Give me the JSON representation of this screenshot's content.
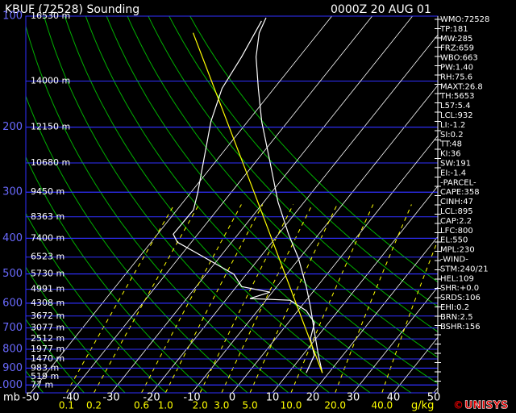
{
  "chart_data": {
    "type": "skewt",
    "title": "KBUF (72528) Sounding",
    "subtitle": "0000Z 20 AUG 01",
    "y_label": "mb",
    "mixing_ratio_unit": "g/kg",
    "log_y": true,
    "ylim": [
      1050,
      100
    ],
    "yticks": [
      100,
      200,
      300,
      400,
      500,
      600,
      700,
      800,
      900,
      1000
    ],
    "xlim": [
      -51.2,
      51
    ],
    "xticks": [
      -50,
      -40,
      -30,
      -20,
      -10,
      0,
      10,
      20,
      30,
      40,
      50
    ],
    "height_levels": [
      100,
      150,
      200,
      250,
      300,
      350,
      400,
      450,
      500,
      550,
      600,
      650,
      700,
      750,
      800,
      850,
      900,
      950,
      1000
    ],
    "height_labels": [
      "16530 m",
      "14000 m",
      "12150 m",
      "10680 m",
      "9450 m",
      "8363 m",
      "7400 m",
      "6523 m",
      "5730 m",
      "4991 m",
      "4308 m",
      "3672 m",
      "3077 m",
      "2512 m",
      "1977 m",
      "1470 m",
      "983 m",
      "519 m",
      "77 m"
    ],
    "mixing_ratios": [
      {
        "value": 0.1,
        "label": "0.1"
      },
      {
        "value": 0.2,
        "label": "0.2"
      },
      {
        "value": 0.6,
        "label": "0.6"
      },
      {
        "value": 1,
        "label": "1.0"
      },
      {
        "value": 2,
        "label": "2.0"
      },
      {
        "value": 3,
        "label": "3.0"
      },
      {
        "value": 5,
        "label": "5.0"
      },
      {
        "value": 10,
        "label": "10.0"
      },
      {
        "value": 20,
        "label": "20.0"
      },
      {
        "value": 40,
        "label": "40.0"
      }
    ],
    "series": [
      {
        "color": "#ffffff",
        "pressure": [
          927,
          830,
          714,
          613,
          541,
          453,
          390,
          319,
          248,
          193,
          157,
          129,
          111,
          101
        ],
        "temperature": [
          18.4,
          13.9,
          8.1,
          2.3,
          -2.7,
          -10.3,
          -17.5,
          -26.5,
          -36.5,
          -46.5,
          -53.9,
          -60.7,
          -64.7,
          -66
        ]
      },
      {
        "color": "#ffffff",
        "pressure": [
          927,
          830,
          750,
          678,
          629,
          589,
          583,
          560,
          541,
          501,
          453,
          410,
          390,
          335,
          303,
          193,
          157,
          129,
          103
        ],
        "temperature": [
          14.4,
          12.9,
          8.7,
          6.5,
          2.1,
          -4,
          -14.3,
          -10.6,
          -18.7,
          -23.1,
          -33.3,
          -43.5,
          -46.1,
          -45.9,
          -48.1,
          -59.1,
          -62.9,
          -64.3,
          -66.5
        ]
      },
      {
        "color": "#ffff00",
        "pressure": [
          927,
          319,
          111
        ],
        "temperature": [
          18.4,
          -31.5,
          -81.1
        ]
      }
    ],
    "stats": [
      "WMO:72528",
      "TP:181",
      "MW:285",
      "FRZ:659",
      "WBO:663",
      "PW:1.40",
      "RH:75.6",
      "MAXT:26.8",
      "TH:5653",
      "L57:5.4",
      "LCL:932",
      "LI:-1.2",
      "SI:0.2",
      "TT:48",
      "KI:36",
      "SW:191",
      "EI:-1.4",
      "-PARCEL-",
      "CAPE:358",
      "CINH:47",
      "LCL:895",
      "CAP:2.2",
      "LFC:800",
      "EL:550",
      "MPL:230",
      "-WIND-",
      "STM:240/21",
      "HEL:109",
      "SHR:+0.0",
      "SRDS:106",
      "EHI:0.2",
      "BRN:2.5",
      "BSHR:156"
    ],
    "logo": {
      "symbol": "©",
      "name": "UNISYS"
    }
  }
}
